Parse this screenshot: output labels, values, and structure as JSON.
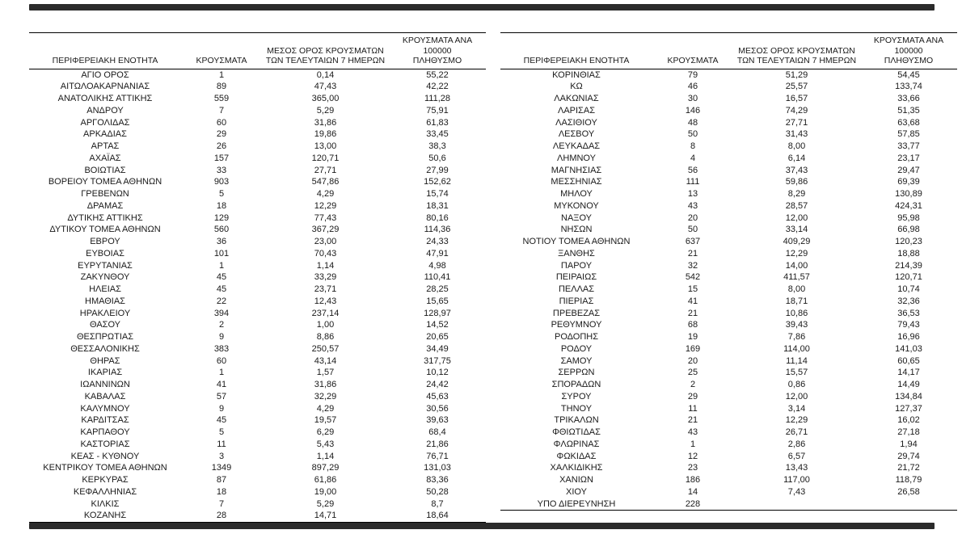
{
  "page": {
    "background": "#ffffff",
    "divider_bar_color": "#2b2b2b",
    "text_color": "#1a1a1a"
  },
  "meta": {
    "cell_names": [
      "region-cell",
      "cases-cell",
      "avg-cases-7d-cell",
      "cases-per-100k-cell"
    ]
  },
  "left_table": {
    "headers": [
      "ΠΕΡΙΦΕΡΕΙΑΚΗ ΕΝΟΤΗΤΑ",
      "ΚΡΟΥΣΜΑΤΑ",
      "ΜΕΣΟΣ ΟΡΟΣ ΚΡΟΥΣΜΑΤΩΝ\nΤΩΝ ΤΕΛΕΥΤΑΙΩΝ 7 ΗΜΕΡΩΝ",
      "ΚΡΟΥΣΜΑΤΑ ΑΝΑ 100000\nΠΛΗΘΥΣΜΟ"
    ],
    "rows": [
      [
        "ΑΓΙΟ ΟΡΟΣ",
        "1",
        "0,14",
        "55,22"
      ],
      [
        "ΑΙΤΩΛΟΑΚΑΡΝΑΝΙΑΣ",
        "89",
        "47,43",
        "42,22"
      ],
      [
        "ΑΝΑΤΟΛΙΚΗΣ ΑΤΤΙΚΗΣ",
        "559",
        "365,00",
        "111,28"
      ],
      [
        "ΑΝΔΡΟΥ",
        "7",
        "5,29",
        "75,91"
      ],
      [
        "ΑΡΓΟΛΙΔΑΣ",
        "60",
        "31,86",
        "61,83"
      ],
      [
        "ΑΡΚΑΔΙΑΣ",
        "29",
        "19,86",
        "33,45"
      ],
      [
        "ΑΡΤΑΣ",
        "26",
        "13,00",
        "38,3"
      ],
      [
        "ΑΧΑΪΑΣ",
        "157",
        "120,71",
        "50,6"
      ],
      [
        "ΒΟΙΩΤΙΑΣ",
        "33",
        "27,71",
        "27,99"
      ],
      [
        "ΒΟΡΕΙΟΥ ΤΟΜΕΑ ΑΘΗΝΩΝ",
        "903",
        "547,86",
        "152,62"
      ],
      [
        "ΓΡΕΒΕΝΩΝ",
        "5",
        "4,29",
        "15,74"
      ],
      [
        "ΔΡΑΜΑΣ",
        "18",
        "12,29",
        "18,31"
      ],
      [
        "ΔΥΤΙΚΗΣ ΑΤΤΙΚΗΣ",
        "129",
        "77,43",
        "80,16"
      ],
      [
        "ΔΥΤΙΚΟΥ ΤΟΜΕΑ ΑΘΗΝΩΝ",
        "560",
        "367,29",
        "114,36"
      ],
      [
        "ΕΒΡΟΥ",
        "36",
        "23,00",
        "24,33"
      ],
      [
        "ΕΥΒΟΙΑΣ",
        "101",
        "70,43",
        "47,91"
      ],
      [
        "ΕΥΡΥΤΑΝΙΑΣ",
        "1",
        "1,14",
        "4,98"
      ],
      [
        "ΖΑΚΥΝΘΟΥ",
        "45",
        "33,29",
        "110,41"
      ],
      [
        "ΗΛΕΙΑΣ",
        "45",
        "23,71",
        "28,25"
      ],
      [
        "ΗΜΑΘΙΑΣ",
        "22",
        "12,43",
        "15,65"
      ],
      [
        "ΗΡΑΚΛΕΙΟΥ",
        "394",
        "237,14",
        "128,97"
      ],
      [
        "ΘΑΣΟΥ",
        "2",
        "1,00",
        "14,52"
      ],
      [
        "ΘΕΣΠΡΩΤΙΑΣ",
        "9",
        "8,86",
        "20,65"
      ],
      [
        "ΘΕΣΣΑΛΟΝΙΚΗΣ",
        "383",
        "250,57",
        "34,49"
      ],
      [
        "ΘΗΡΑΣ",
        "60",
        "43,14",
        "317,75"
      ],
      [
        "ΙΚΑΡΙΑΣ",
        "1",
        "1,57",
        "10,12"
      ],
      [
        "ΙΩΑΝΝΙΝΩΝ",
        "41",
        "31,86",
        "24,42"
      ],
      [
        "ΚΑΒΑΛΑΣ",
        "57",
        "32,29",
        "45,63"
      ],
      [
        "ΚΑΛΥΜΝΟΥ",
        "9",
        "4,29",
        "30,56"
      ],
      [
        "ΚΑΡΔΙΤΣΑΣ",
        "45",
        "19,57",
        "39,63"
      ],
      [
        "ΚΑΡΠΑΘΟΥ",
        "5",
        "6,29",
        "68,4"
      ],
      [
        "ΚΑΣΤΟΡΙΑΣ",
        "11",
        "5,43",
        "21,86"
      ],
      [
        "ΚΕΑΣ - ΚΥΘΝΟΥ",
        "3",
        "1,14",
        "76,71"
      ],
      [
        "ΚΕΝΤΡΙΚΟΥ ΤΟΜΕΑ ΑΘΗΝΩΝ",
        "1349",
        "897,29",
        "131,03"
      ],
      [
        "ΚΕΡΚΥΡΑΣ",
        "87",
        "61,86",
        "83,36"
      ],
      [
        "ΚΕΦΑΛΛΗΝΙΑΣ",
        "18",
        "19,00",
        "50,28"
      ],
      [
        "ΚΙΛΚΙΣ",
        "7",
        "5,29",
        "8,7"
      ],
      [
        "ΚΟΖΑΝΗΣ",
        "28",
        "14,71",
        "18,64"
      ]
    ]
  },
  "right_table": {
    "headers": [
      "ΠΕΡΙΦΕΡΕΙΑΚΗ ΕΝΟΤΗΤΑ",
      "ΚΡΟΥΣΜΑΤΑ",
      "ΜΕΣΟΣ ΟΡΟΣ ΚΡΟΥΣΜΑΤΩΝ\nΤΩΝ ΤΕΛΕΥΤΑΙΩΝ 7 ΗΜΕΡΩΝ",
      "ΚΡΟΥΣΜΑΤΑ ΑΝΑ 100000\nΠΛΗΘΥΣΜΟ"
    ],
    "rows": [
      [
        "ΚΟΡΙΝΘΙΑΣ",
        "79",
        "51,29",
        "54,45"
      ],
      [
        "ΚΩ",
        "46",
        "25,57",
        "133,74"
      ],
      [
        "ΛΑΚΩΝΙΑΣ",
        "30",
        "16,57",
        "33,66"
      ],
      [
        "ΛΑΡΙΣΑΣ",
        "146",
        "74,29",
        "51,35"
      ],
      [
        "ΛΑΣΙΘΙΟΥ",
        "48",
        "27,71",
        "63,68"
      ],
      [
        "ΛΕΣΒΟΥ",
        "50",
        "31,43",
        "57,85"
      ],
      [
        "ΛΕΥΚΑΔΑΣ",
        "8",
        "8,00",
        "33,77"
      ],
      [
        "ΛΗΜΝΟΥ",
        "4",
        "6,14",
        "23,17"
      ],
      [
        "ΜΑΓΝΗΣΙΑΣ",
        "56",
        "37,43",
        "29,47"
      ],
      [
        "ΜΕΣΣΗΝΙΑΣ",
        "111",
        "59,86",
        "69,39"
      ],
      [
        "ΜΗΛΟΥ",
        "13",
        "8,29",
        "130,89"
      ],
      [
        "ΜΥΚΟΝΟΥ",
        "43",
        "28,57",
        "424,31"
      ],
      [
        "ΝΑΞΟΥ",
        "20",
        "12,00",
        "95,98"
      ],
      [
        "ΝΗΣΩΝ",
        "50",
        "33,14",
        "66,98"
      ],
      [
        "ΝΟΤΙΟΥ ΤΟΜΕΑ ΑΘΗΝΩΝ",
        "637",
        "409,29",
        "120,23"
      ],
      [
        "ΞΑΝΘΗΣ",
        "21",
        "12,29",
        "18,88"
      ],
      [
        "ΠΑΡΟΥ",
        "32",
        "14,00",
        "214,39"
      ],
      [
        "ΠΕΙΡΑΙΩΣ",
        "542",
        "411,57",
        "120,71"
      ],
      [
        "ΠΕΛΛΑΣ",
        "15",
        "8,00",
        "10,74"
      ],
      [
        "ΠΙΕΡΙΑΣ",
        "41",
        "18,71",
        "32,36"
      ],
      [
        "ΠΡΕΒΕΖΑΣ",
        "21",
        "10,86",
        "36,53"
      ],
      [
        "ΡΕΘΥΜΝΟΥ",
        "68",
        "39,43",
        "79,43"
      ],
      [
        "ΡΟΔΟΠΗΣ",
        "19",
        "7,86",
        "16,96"
      ],
      [
        "ΡΟΔΟΥ",
        "169",
        "114,00",
        "141,03"
      ],
      [
        "ΣΑΜΟΥ",
        "20",
        "11,14",
        "60,65"
      ],
      [
        "ΣΕΡΡΩΝ",
        "25",
        "15,57",
        "14,17"
      ],
      [
        "ΣΠΟΡΑΔΩΝ",
        "2",
        "0,86",
        "14,49"
      ],
      [
        "ΣΥΡΟΥ",
        "29",
        "12,00",
        "134,84"
      ],
      [
        "ΤΗΝΟΥ",
        "11",
        "3,14",
        "127,37"
      ],
      [
        "ΤΡΙΚΑΛΩΝ",
        "21",
        "12,29",
        "16,02"
      ],
      [
        "ΦΘΙΩΤΙΔΑΣ",
        "43",
        "26,71",
        "27,18"
      ],
      [
        "ΦΛΩΡΙΝΑΣ",
        "1",
        "2,86",
        "1,94"
      ],
      [
        "ΦΩΚΙΔΑΣ",
        "12",
        "6,57",
        "29,74"
      ],
      [
        "ΧΑΛΚΙΔΙΚΗΣ",
        "23",
        "13,43",
        "21,72"
      ],
      [
        "ΧΑΝΙΩΝ",
        "186",
        "117,00",
        "118,79"
      ],
      [
        "ΧΙΟΥ",
        "14",
        "7,43",
        "26,58"
      ],
      [
        "ΥΠΟ ΔΙΕΡΕΥΝΗΣΗ",
        "228",
        "",
        ""
      ]
    ]
  }
}
